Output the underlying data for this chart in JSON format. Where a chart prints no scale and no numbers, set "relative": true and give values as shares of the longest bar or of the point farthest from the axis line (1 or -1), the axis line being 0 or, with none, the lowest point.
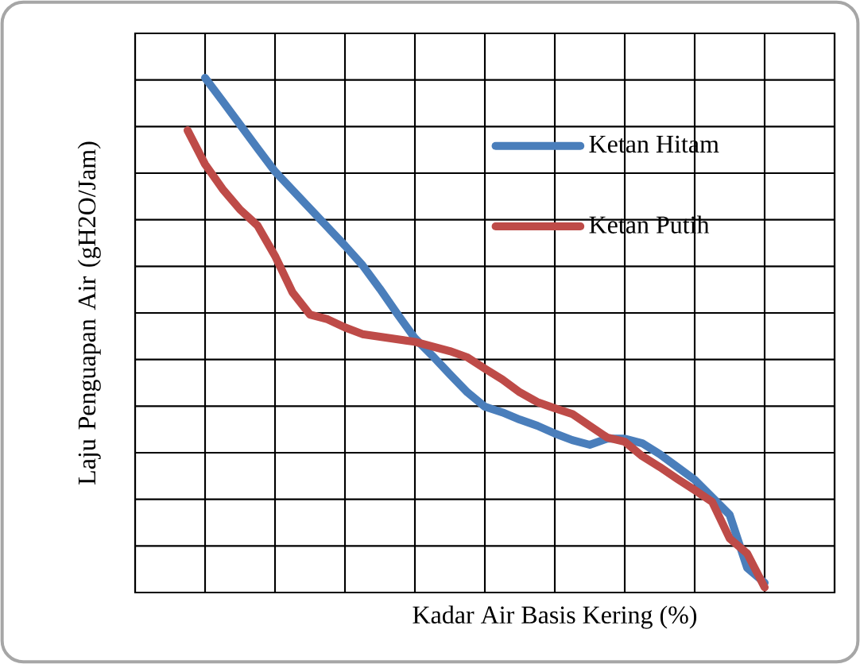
{
  "chart_data": {
    "type": "line",
    "relative": true,
    "xlabel": "Kadar Air Basis Kering (%)",
    "ylabel": "Laju Penguapan Air (gH2O/Jam)",
    "grid": true,
    "legend": "top right",
    "line_style": "solid",
    "marker": "none",
    "categories": [
      null,
      null,
      null,
      null,
      null,
      null,
      null,
      null,
      null,
      null,
      null,
      null,
      null,
      null,
      null,
      null,
      null,
      null,
      null,
      null,
      null,
      null,
      null,
      null,
      null,
      null,
      null,
      null,
      null,
      null,
      null,
      null,
      null,
      null,
      null,
      null,
      null,
      null,
      null,
      null,
      null
    ],
    "series": [
      {
        "name": "Ketan Hitam",
        "color": "#4a7ebb",
        "values": [
          null,
          null,
          null,
          null,
          1.0,
          0.955,
          0.909,
          0.863,
          0.818,
          0.782,
          0.746,
          0.71,
          0.674,
          0.636,
          0.59,
          0.541,
          0.494,
          0.46,
          0.424,
          0.389,
          0.361,
          0.35,
          0.336,
          0.324,
          0.309,
          0.296,
          0.287,
          0.299,
          0.299,
          0.29,
          0.269,
          0.244,
          0.219,
          0.185,
          0.151,
          0.048,
          0.019,
          null,
          null,
          null,
          null
        ]
      },
      {
        "name": "Ketan Putih",
        "color": "#be4b48",
        "values": [
          null,
          null,
          null,
          0.898,
          0.832,
          0.784,
          0.744,
          0.713,
          0.654,
          0.583,
          0.54,
          0.531,
          0.515,
          0.502,
          0.497,
          0.492,
          0.487,
          0.478,
          0.469,
          0.457,
          0.435,
          0.414,
          0.389,
          0.37,
          0.358,
          0.347,
          0.324,
          0.301,
          0.293,
          0.265,
          0.244,
          0.221,
          0.199,
          0.176,
          0.105,
          0.076,
          0.01,
          null,
          null,
          null,
          null
        ]
      }
    ]
  }
}
